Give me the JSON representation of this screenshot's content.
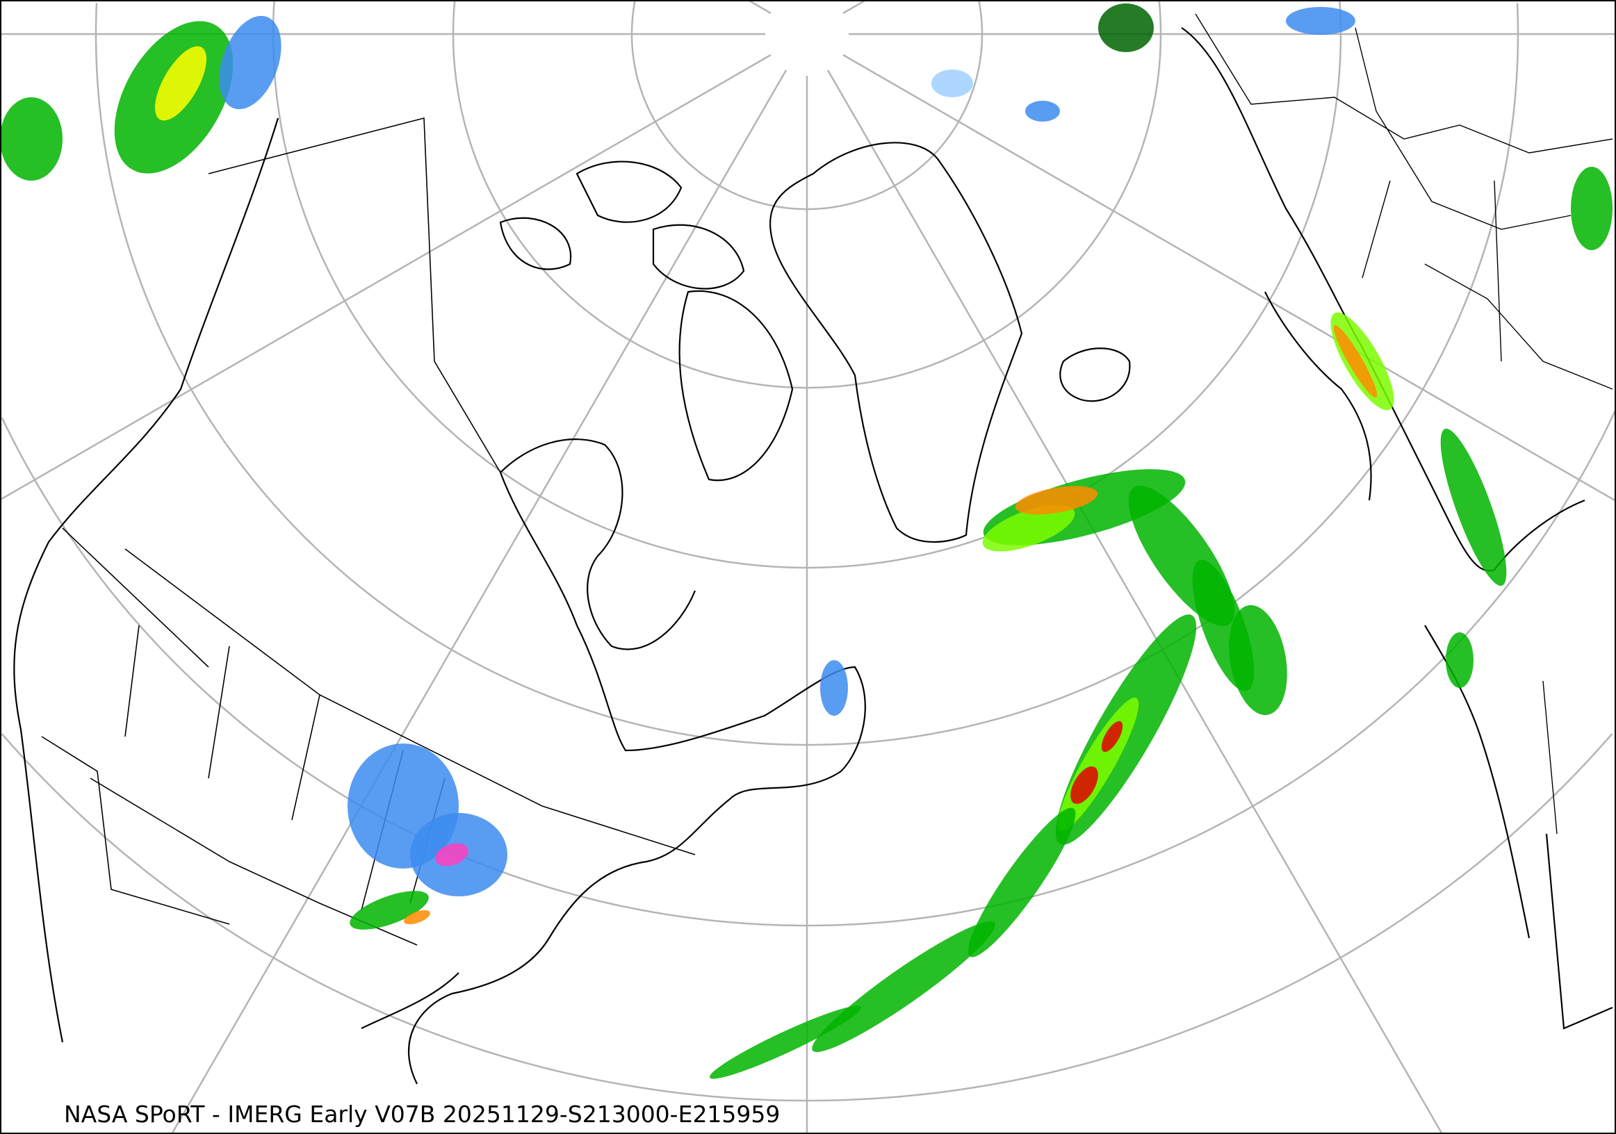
{
  "caption": "NASA SPoRT - IMERG Early V07B 20251129-S213000-E215959",
  "colors": {
    "graticule": "#b4b4b4",
    "coastline": "#000000",
    "light_rain": "#00b400",
    "moderate_rain": "#7cfc00",
    "heavy_rain": "#ffff00",
    "very_heavy_rain": "#ff8c00",
    "extreme_rain": "#e00000",
    "light_snow": "#a0d0ff",
    "snow": "#3c8cf0",
    "mixed": "#ff40c0"
  }
}
